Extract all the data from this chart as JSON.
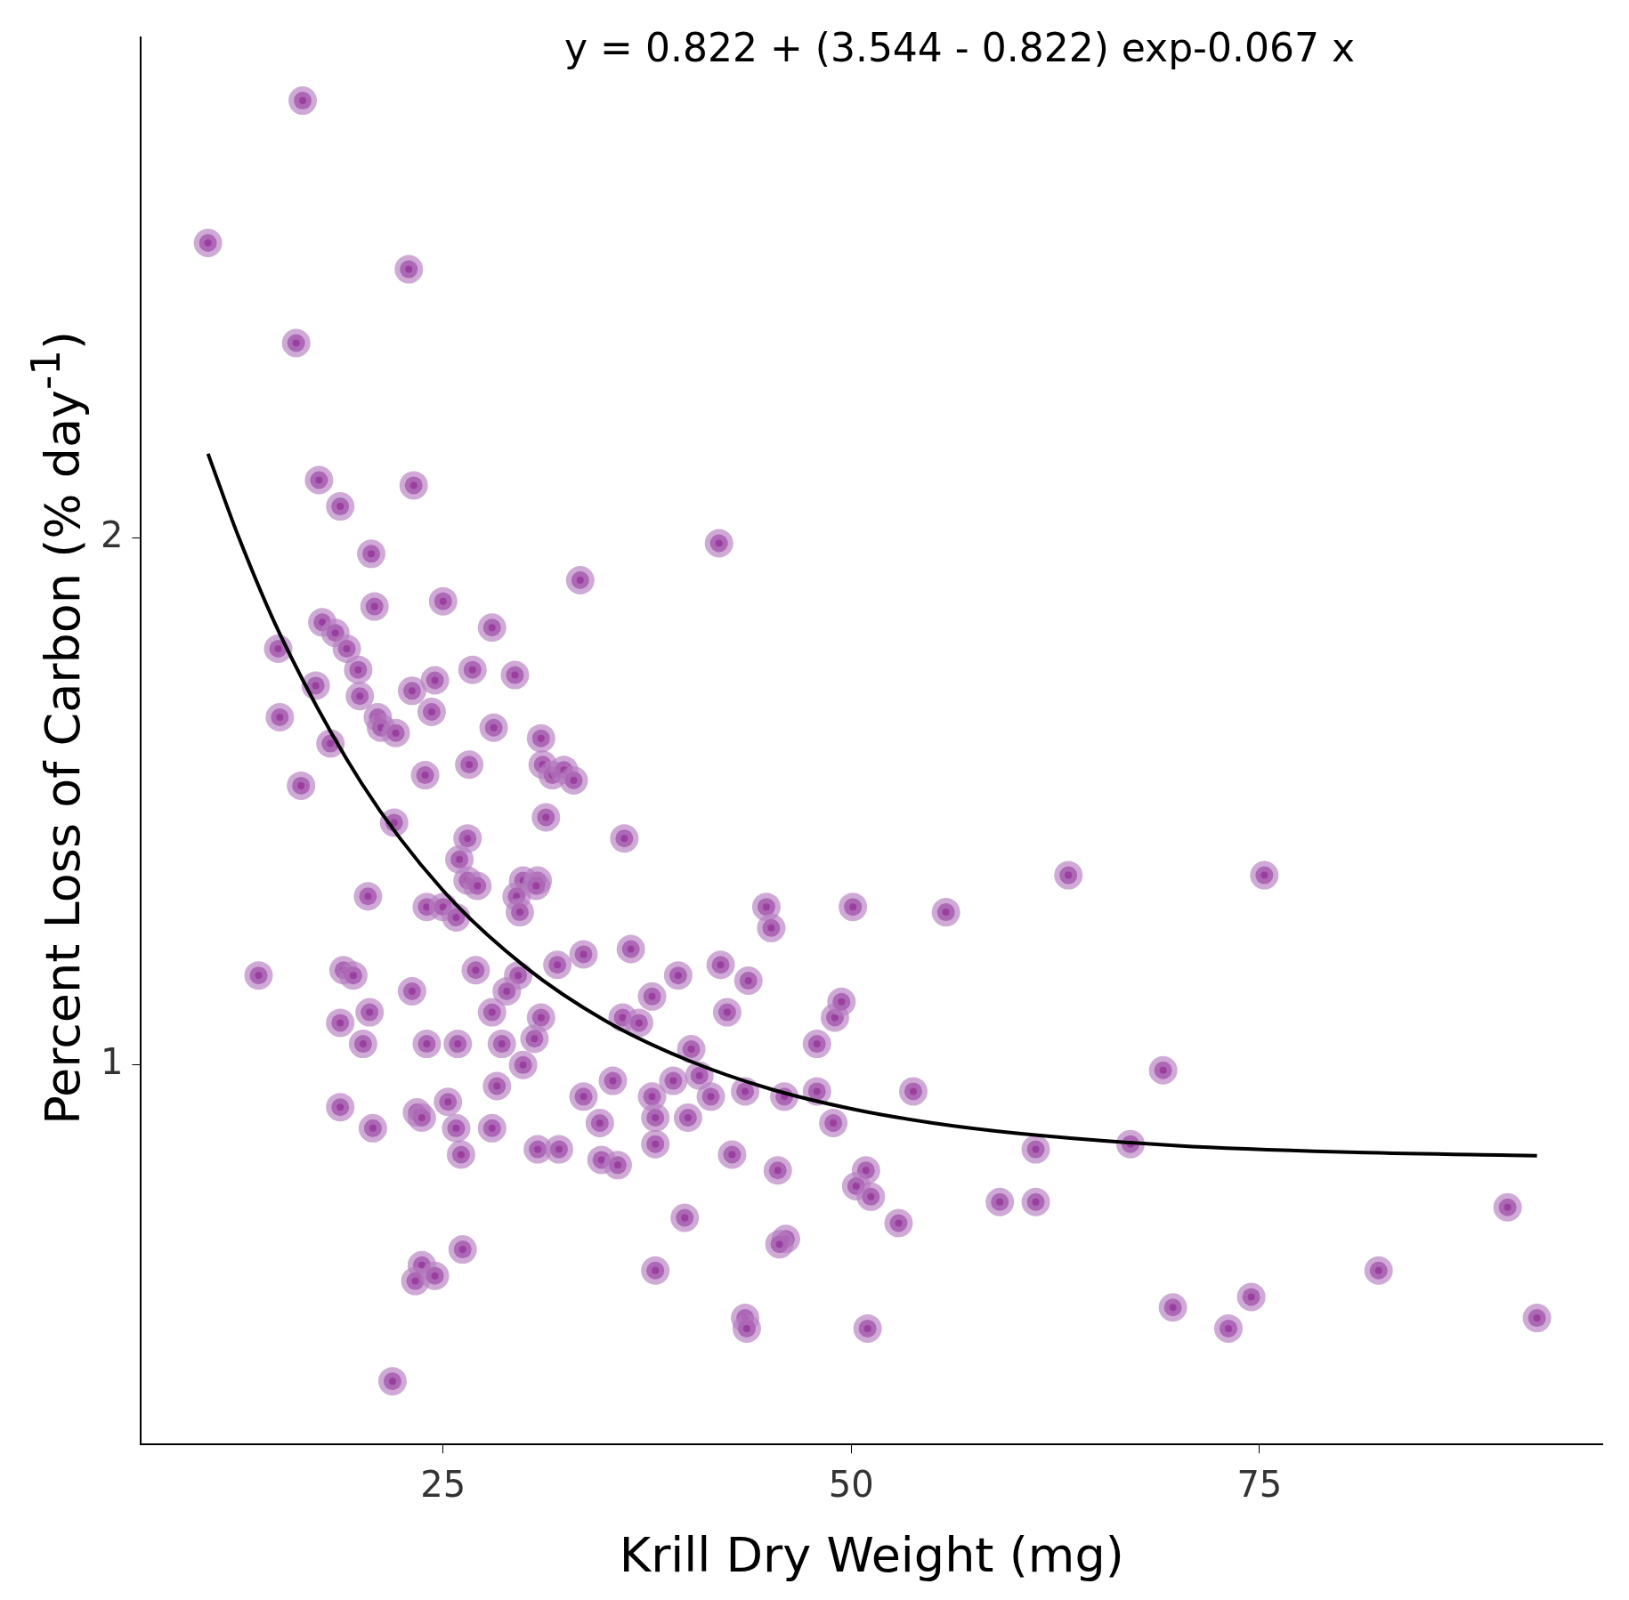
{
  "chart_data": {
    "type": "scatter",
    "xlabel": "Krill Dry Weight (mg)",
    "ylabel": "Percent Loss of Carbon (% day$^{-1}$)",
    "annotations": [
      "y = 0.822 + (3.544 - 0.822) exp-0.067 x"
    ],
    "xlim": [
      6.5,
      96
    ],
    "xticks": [
      25,
      50,
      75
    ],
    "ylim": [
      0.28,
      2.95
    ],
    "yticks": [
      1,
      2
    ],
    "grid": false,
    "marker": "circle",
    "series": [
      {
        "type": "scatter",
        "color": "#b57cc0",
        "x": [
          16.4,
          10.6,
          22.9,
          16.0,
          17.4,
          23.2,
          18.7,
          20.6,
          41.9,
          20.8,
          33.4,
          25.0,
          17.6,
          18.4,
          14.9,
          19.1,
          28.0,
          17.2,
          19.8,
          19.9,
          24.5,
          26.8,
          29.4,
          23.1,
          24.3,
          15.0,
          21.0,
          21.2,
          22.1,
          28.1,
          18.1,
          31.0,
          16.3,
          23.9,
          26.6,
          31.1,
          31.7,
          32.4,
          33.0,
          31.3,
          22.0,
          36.1,
          26.5,
          26.0,
          26.5,
          27.1,
          29.9,
          30.8,
          30.7,
          29.5,
          29.7,
          20.4,
          24.0,
          25.0,
          25.8,
          44.8,
          45.1,
          50.1,
          55.8,
          63.3,
          75.3,
          13.7,
          18.9,
          19.5,
          23.1,
          27.0,
          29.6,
          28.9,
          28.0,
          32.0,
          33.6,
          36.5,
          37.8,
          39.4,
          42.0,
          43.7,
          42.4,
          36.0,
          37.0,
          31.0,
          30.6,
          28.6,
          29.9,
          18.7,
          20.5,
          20.1,
          24.0,
          25.9,
          40.2,
          40.7,
          39.1,
          41.4,
          43.5,
          37.8,
          33.6,
          35.4,
          28.3,
          18.7,
          20.7,
          23.4,
          23.7,
          25.3,
          25.8,
          28.0,
          26.1,
          30.8,
          32.1,
          34.6,
          34.7,
          35.7,
          38.0,
          38.0,
          40.0,
          42.7,
          47.9,
          45.9,
          47.9,
          48.9,
          49.0,
          49.4,
          53.8,
          45.5,
          50.9,
          50.3,
          51.2,
          52.9,
          59.1,
          61.3,
          61.3,
          67.1,
          69.1,
          90.2,
          39.8,
          46.0,
          45.6,
          26.2,
          23.7,
          23.3,
          24.5,
          38.0,
          43.5,
          43.6,
          51.0,
          69.7,
          73.1,
          74.5,
          82.3,
          92.0,
          21.9
        ],
        "values": [
          2.83,
          2.56,
          2.51,
          2.37,
          2.11,
          2.1,
          2.06,
          1.97,
          1.99,
          1.87,
          1.92,
          1.88,
          1.84,
          1.82,
          1.79,
          1.79,
          1.83,
          1.72,
          1.75,
          1.7,
          1.73,
          1.75,
          1.74,
          1.71,
          1.67,
          1.66,
          1.66,
          1.64,
          1.63,
          1.64,
          1.61,
          1.62,
          1.53,
          1.55,
          1.57,
          1.57,
          1.55,
          1.56,
          1.54,
          1.47,
          1.46,
          1.43,
          1.43,
          1.39,
          1.35,
          1.34,
          1.35,
          1.35,
          1.34,
          1.32,
          1.29,
          1.32,
          1.3,
          1.3,
          1.28,
          1.3,
          1.26,
          1.3,
          1.29,
          1.36,
          1.36,
          1.17,
          1.18,
          1.17,
          1.14,
          1.18,
          1.17,
          1.14,
          1.1,
          1.19,
          1.21,
          1.22,
          1.13,
          1.17,
          1.19,
          1.16,
          1.1,
          1.09,
          1.08,
          1.09,
          1.05,
          1.04,
          1.0,
          1.08,
          1.1,
          1.04,
          1.04,
          1.04,
          1.03,
          0.98,
          0.97,
          0.94,
          0.95,
          0.94,
          0.94,
          0.97,
          0.96,
          0.92,
          0.88,
          0.91,
          0.9,
          0.93,
          0.88,
          0.88,
          0.83,
          0.84,
          0.84,
          0.89,
          0.82,
          0.81,
          0.85,
          0.9,
          0.9,
          0.83,
          0.95,
          0.94,
          1.04,
          0.89,
          1.09,
          1.12,
          0.95,
          0.8,
          0.8,
          0.77,
          0.75,
          0.7,
          0.74,
          0.74,
          0.84,
          0.85,
          0.99,
          0.73,
          0.71,
          0.67,
          0.66,
          0.65,
          0.62,
          0.59,
          0.6,
          0.61,
          0.52,
          0.5,
          0.5,
          0.54,
          0.5,
          0.56,
          0.61,
          0.52,
          0.4
        ]
      },
      {
        "type": "line",
        "color": "#000000",
        "line_style": "solid",
        "marker": "none",
        "x": [
          10.6,
          12.5,
          15,
          20,
          25,
          30,
          35,
          40,
          45,
          50,
          55,
          60,
          70,
          80,
          92
        ],
        "values": [
          2.16,
          2.0,
          1.818,
          1.535,
          1.331,
          1.187,
          1.083,
          1.009,
          0.955,
          0.917,
          0.89,
          0.871,
          0.847,
          0.835,
          0.828
        ]
      }
    ]
  }
}
